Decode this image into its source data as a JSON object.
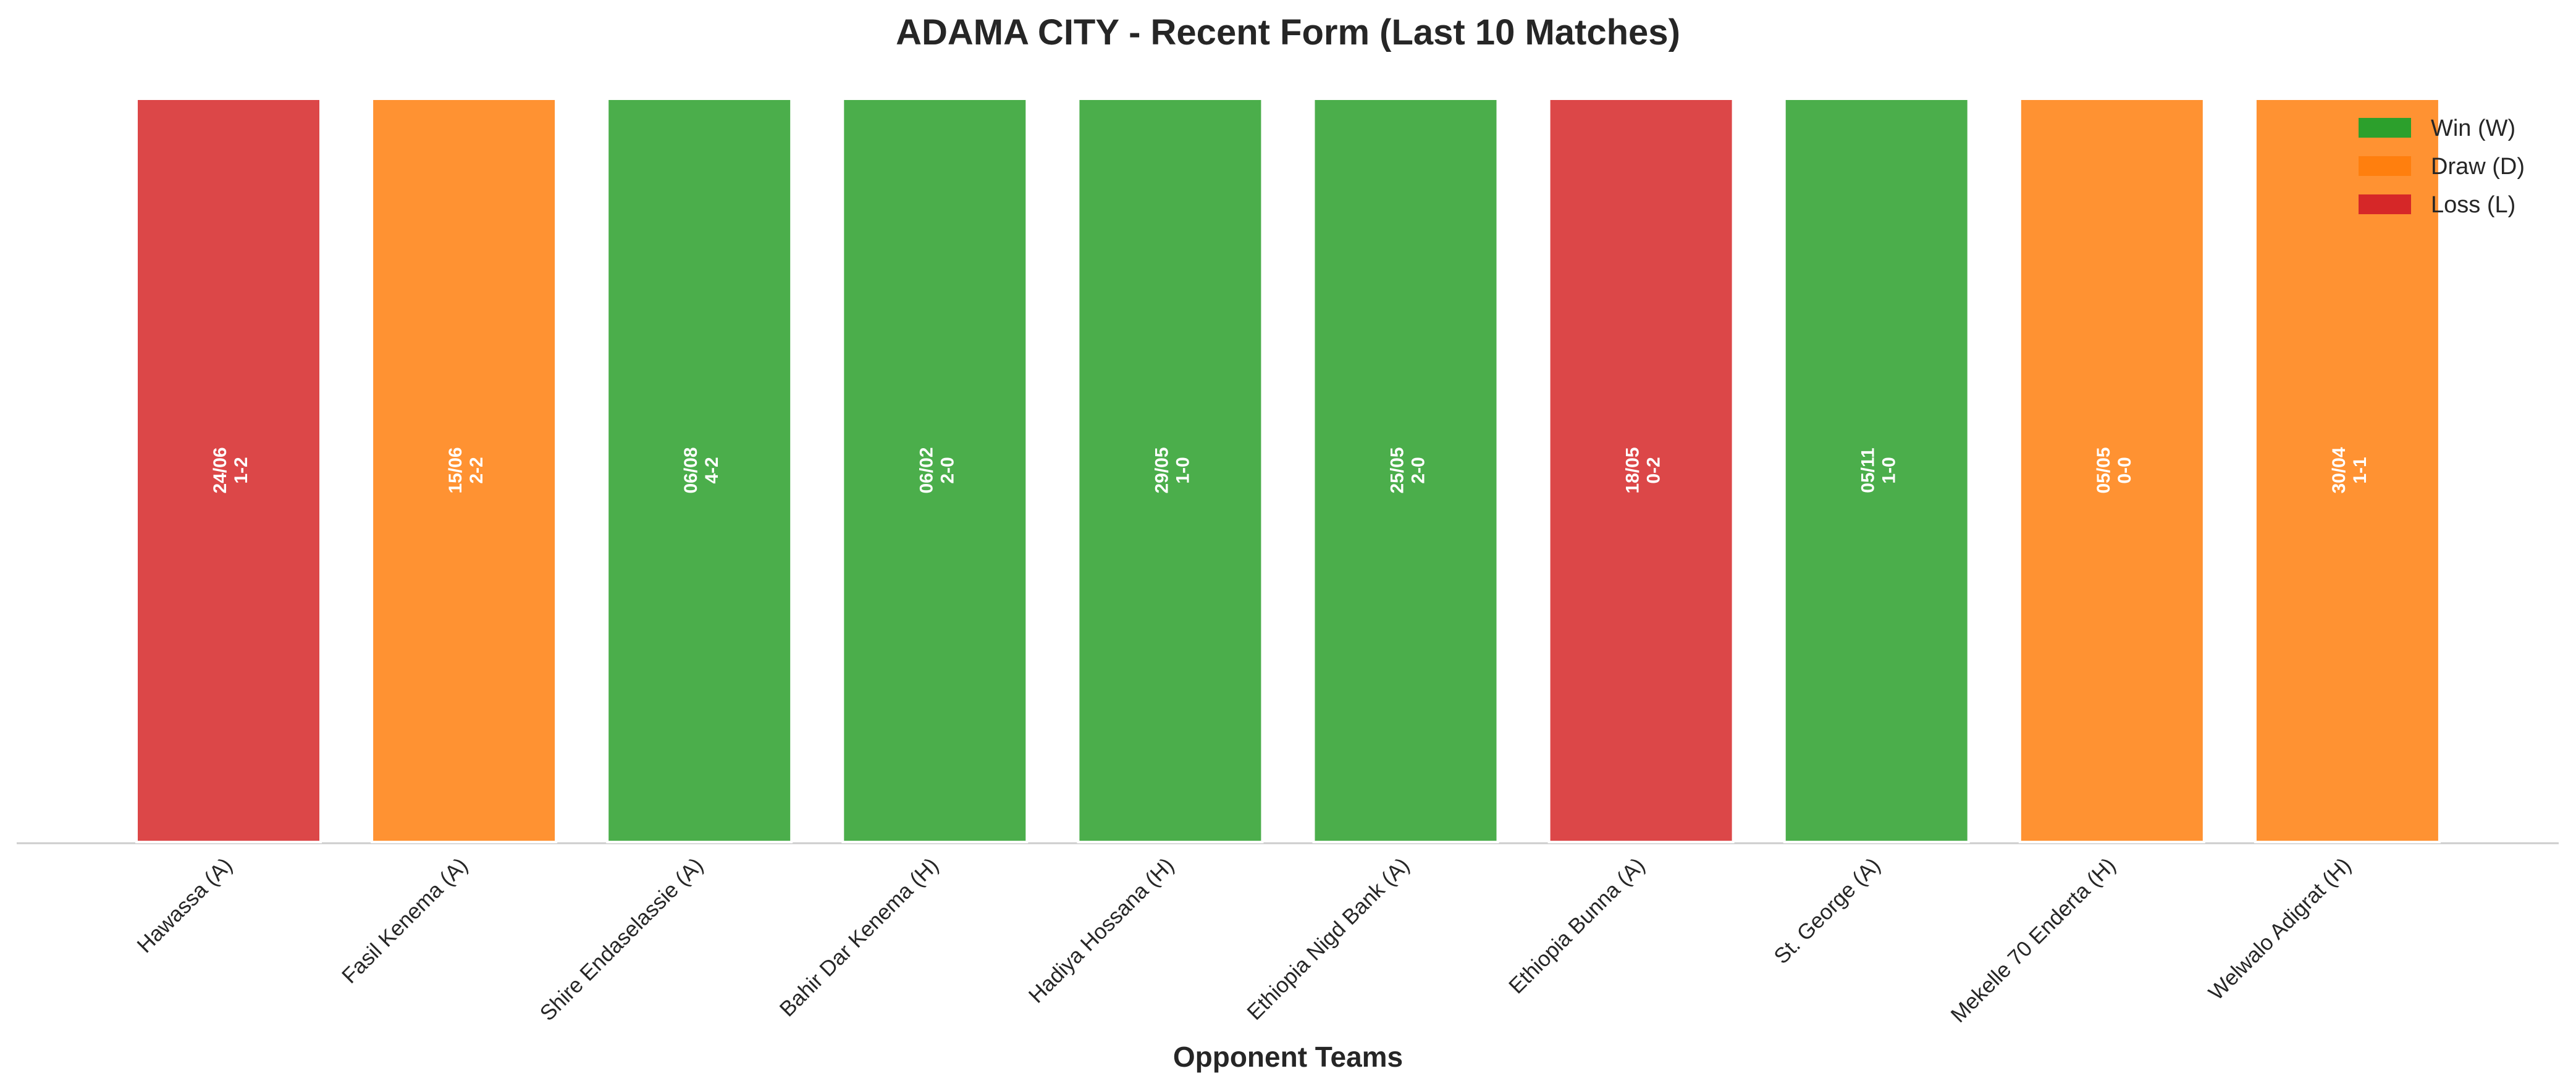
{
  "chart_data": {
    "type": "bar",
    "title": "ADAMA CITY - Recent Form (Last 10 Matches)",
    "x_label": "Opponent Teams",
    "categories": [
      "Hawassa (A)",
      "Fasil Kenema (A)",
      "Shire Endaselassie (A)",
      "Bahir Dar Kenema (H)",
      "Hadiya Hossana (H)",
      "Ethiopia Nigd Bank (A)",
      "Ethiopia Bunna (A)",
      "St. George (A)",
      "Mekelle 70 Enderta (H)",
      "Welwalo Adigrat (H)"
    ],
    "values": [
      1,
      1,
      1,
      1,
      1,
      1,
      1,
      1,
      1,
      1
    ],
    "dates": [
      "24/06",
      "15/06",
      "06/08",
      "06/02",
      "29/05",
      "25/05",
      "18/05",
      "05/11",
      "05/05",
      "30/04"
    ],
    "scores": [
      "1-2",
      "2-2",
      "4-2",
      "2-0",
      "1-0",
      "2-0",
      "0-2",
      "1-0",
      "0-0",
      "1-1"
    ],
    "colors": [
      "#d62728",
      "#ff7f0e",
      "#2ca02c",
      "#2ca02c",
      "#2ca02c",
      "#2ca02c",
      "#d62728",
      "#2ca02c",
      "#ff7f0e",
      "#ff7f0e"
    ],
    "ylim": [
      0,
      1
    ],
    "legend_position": "upper right",
    "legend": [
      {
        "name": "Win (W)",
        "color": "#2ca02c"
      },
      {
        "name": "Draw (D)",
        "color": "#ff7f0e"
      },
      {
        "name": "Loss (L)",
        "color": "#d62728"
      }
    ]
  }
}
